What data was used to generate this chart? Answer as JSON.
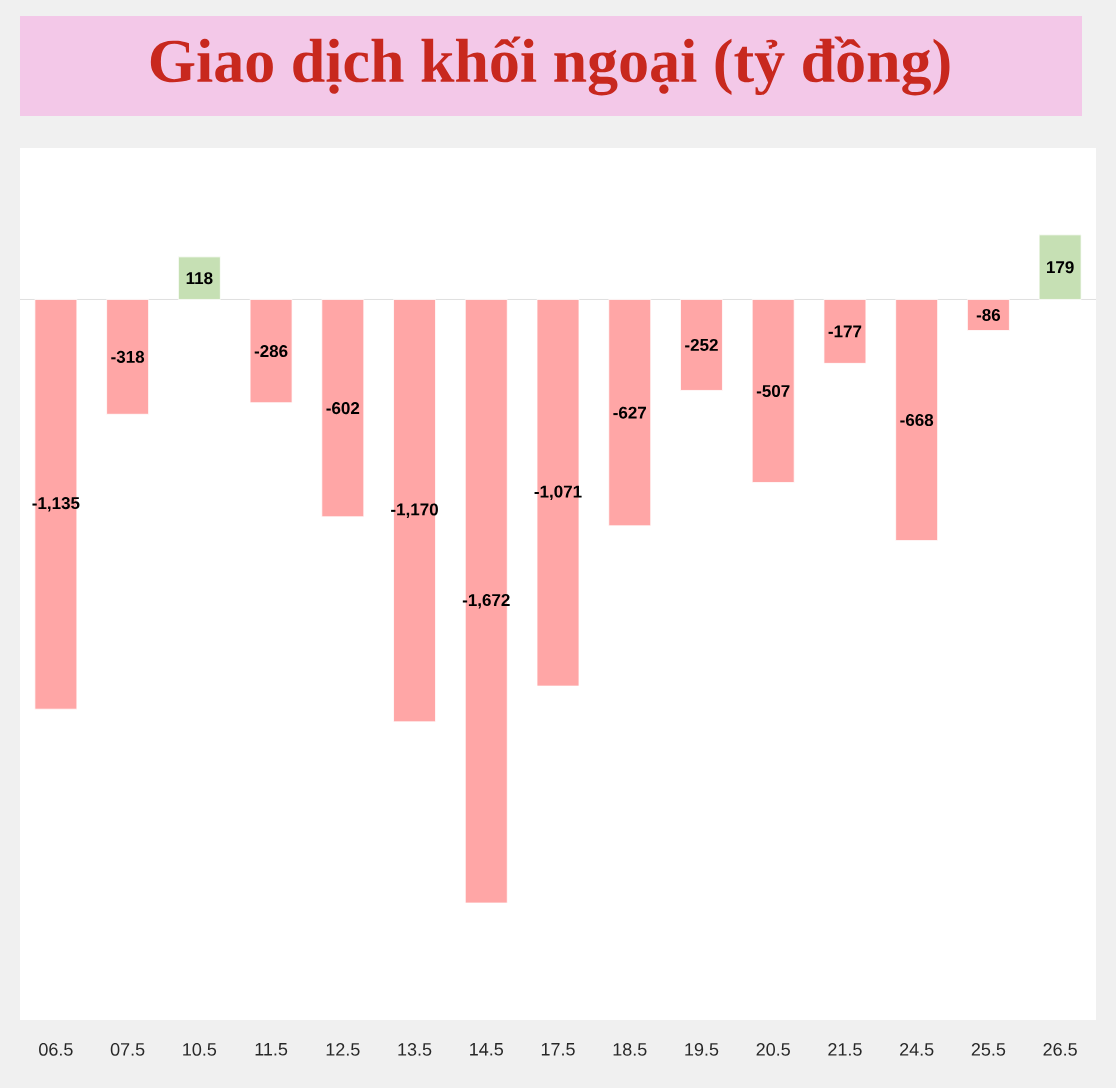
{
  "chart_data": {
    "type": "bar",
    "title": "Giao dịch khối ngoại (tỷ đồng)",
    "categories": [
      "06.5",
      "07.5",
      "10.5",
      "11.5",
      "12.5",
      "13.5",
      "14.5",
      "17.5",
      "18.5",
      "19.5",
      "20.5",
      "21.5",
      "24.5",
      "25.5",
      "26.5"
    ],
    "values": [
      -1135,
      -318,
      118,
      -286,
      -602,
      -1170,
      -1672,
      -1071,
      -627,
      -252,
      -507,
      -177,
      -668,
      -86,
      179
    ],
    "colors": [
      "#ffa6a6",
      "#ffa6a6",
      "#c6e0b4",
      "#ffa6a6",
      "#ffa6a6",
      "#ffa6a6",
      "#ffa6a6",
      "#ffa6a6",
      "#ffa6a6",
      "#ffa6a6",
      "#ffa6a6",
      "#ffa6a6",
      "#ffa6a6",
      "#ffa6a6",
      "#c6e0b4"
    ],
    "value_labels": [
      "-1,135",
      "-318",
      "118",
      "-286",
      "-602",
      "-1,170",
      "-1,672",
      "-1,071",
      "-627",
      "-252",
      "-507",
      "-177",
      "-668",
      "-86",
      "179"
    ],
    "grid": false
  }
}
